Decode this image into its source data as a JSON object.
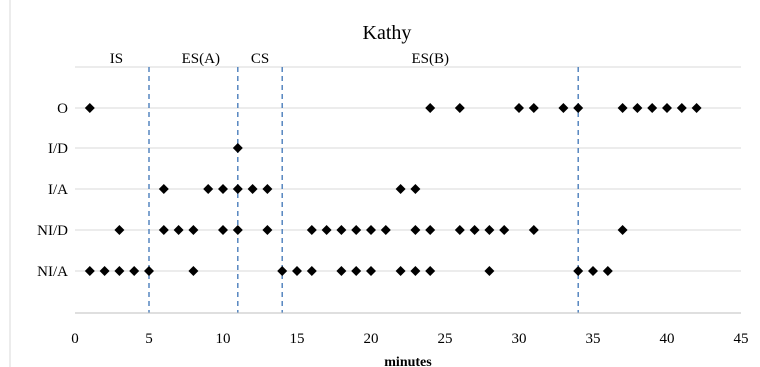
{
  "chart_data": {
    "type": "scatter",
    "title": "Kathy",
    "xlabel": "minutes",
    "ylabel": "",
    "xlim": [
      0,
      45
    ],
    "x_ticks": [
      0,
      5,
      10,
      15,
      20,
      25,
      30,
      35,
      40,
      45
    ],
    "categories": [
      "NI/A",
      "NI/D",
      "I/A",
      "I/D",
      "O"
    ],
    "grid": "horizontal",
    "marker": "diamond",
    "marker_color": "#000000",
    "divider_color": "#4a7ebb",
    "phase_dividers_x": [
      5,
      11,
      14,
      34
    ],
    "phases": [
      {
        "label": "IS",
        "x": 2.8
      },
      {
        "label": "ES(A)",
        "x": 8.5
      },
      {
        "label": "CS",
        "x": 12.5
      },
      {
        "label": "ES(B)",
        "x": 24
      }
    ],
    "series": [
      {
        "category": "O",
        "x": [
          1,
          24,
          26,
          30,
          31,
          33,
          34,
          37,
          38,
          39,
          40,
          41,
          42
        ]
      },
      {
        "category": "I/D",
        "x": [
          11
        ]
      },
      {
        "category": "I/A",
        "x": [
          6,
          9,
          10,
          11,
          12,
          13,
          22,
          23
        ]
      },
      {
        "category": "NI/D",
        "x": [
          3,
          6,
          7,
          8,
          10,
          11,
          13,
          16,
          17,
          18,
          19,
          20,
          21,
          23,
          24,
          26,
          27,
          28,
          29,
          31,
          37
        ]
      },
      {
        "category": "NI/A",
        "x": [
          1,
          2,
          3,
          4,
          5,
          8,
          14,
          15,
          16,
          18,
          19,
          20,
          22,
          23,
          24,
          28,
          34,
          35,
          36
        ]
      }
    ]
  }
}
